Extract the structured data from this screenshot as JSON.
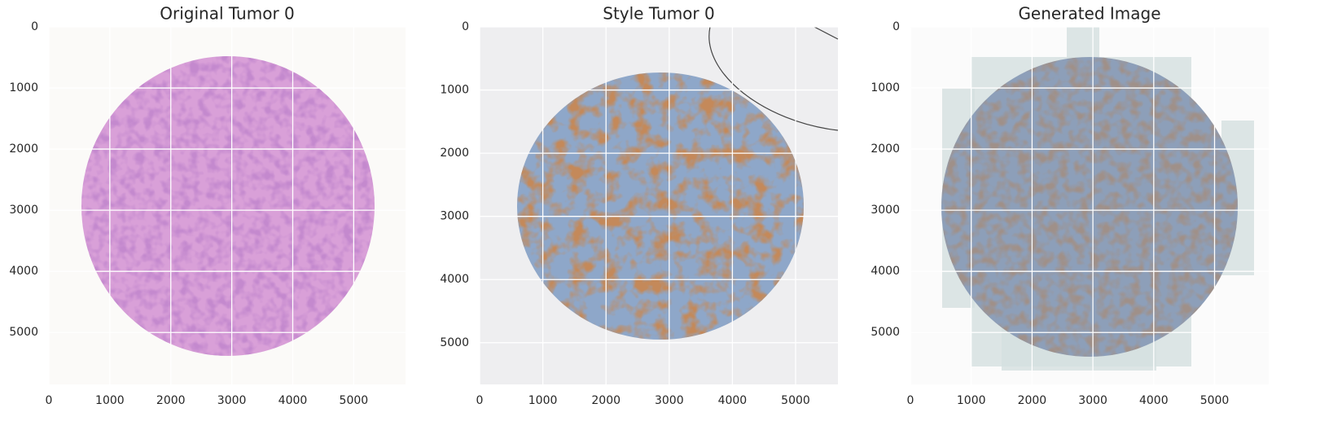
{
  "chart_data": [
    {
      "type": "image",
      "title": "Original Tumor 0",
      "xlim": [
        0,
        5850
      ],
      "ylim": [
        5850,
        0
      ],
      "xticks": [
        0,
        1000,
        2000,
        3000,
        4000,
        5000
      ],
      "yticks": [
        0,
        1000,
        2000,
        3000,
        4000,
        5000
      ],
      "grid": true
    },
    {
      "type": "image",
      "title": "Style Tumor 0",
      "xlim": [
        0,
        5670
      ],
      "ylim": [
        5660,
        0
      ],
      "xticks": [
        0,
        1000,
        2000,
        3000,
        4000,
        5000
      ],
      "yticks": [
        0,
        1000,
        2000,
        3000,
        4000,
        5000
      ],
      "grid": true
    },
    {
      "type": "image",
      "title": "Generated Image",
      "xlim": [
        0,
        5890
      ],
      "ylim": [
        5850,
        0
      ],
      "xticks": [
        0,
        1000,
        2000,
        3000,
        4000,
        5000
      ],
      "yticks": [
        0,
        1000,
        2000,
        3000,
        4000,
        5000
      ],
      "grid": true
    }
  ]
}
